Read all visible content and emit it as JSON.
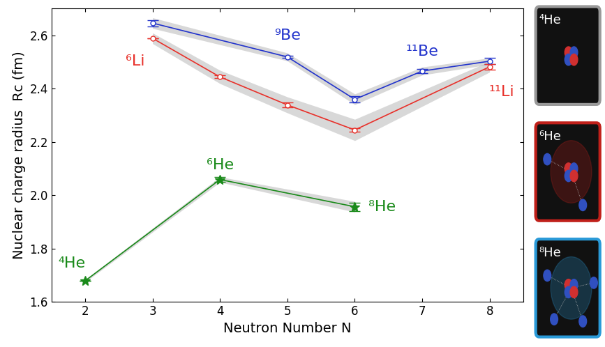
{
  "chart_data": {
    "type": "line",
    "xlabel": "Neutron Number N",
    "ylabel": "Nuclear charge radius  Rc (fm)",
    "xlim": [
      1.5,
      8.5
    ],
    "xticks": [
      2,
      3,
      4,
      5,
      6,
      7,
      8
    ],
    "ylim": [
      1.6,
      2.7
    ],
    "yticks": [
      1.6,
      1.8,
      2.0,
      2.2,
      2.4,
      2.6
    ],
    "grid": false,
    "series": [
      {
        "color": "#2233cc",
        "marker": "circle",
        "line_style": "solid",
        "x": [
          3,
          5,
          6,
          7,
          8
        ],
        "values": [
          2.646,
          2.519,
          2.36,
          2.466,
          2.503
        ],
        "errors": [
          0.012,
          0.004,
          0.012,
          0.008,
          0.012
        ],
        "band": [
          0.02,
          0.015,
          0.02,
          0.015,
          0.012
        ],
        "point_labels": [
          {
            "x": 5,
            "text": "⁹Be"
          },
          {
            "x": 7,
            "text": "¹¹Be"
          }
        ]
      },
      {
        "color": "#e8302a",
        "marker": "circle",
        "line_style": "solid",
        "x": [
          3,
          4,
          5,
          6,
          8
        ],
        "values": [
          2.589,
          2.444,
          2.339,
          2.245,
          2.482
        ],
        "errors": [
          0.0,
          0.005,
          0.008,
          0.006,
          0.01
        ],
        "band": [
          0.02,
          0.025,
          0.03,
          0.04,
          0.02
        ],
        "point_labels": [
          {
            "x": 3,
            "text": "⁶Li"
          },
          {
            "x": 8,
            "text": "¹¹Li"
          }
        ]
      },
      {
        "color": "#1a8a1a",
        "marker": "star",
        "line_style": "solid",
        "x": [
          2,
          4,
          6
        ],
        "values": [
          1.679,
          2.059,
          1.957
        ],
        "errors": [
          0.0,
          0.01,
          0.016
        ],
        "band": [
          0.005,
          0.01,
          0.02
        ],
        "point_labels": [
          {
            "x": 2,
            "text": "⁴He"
          },
          {
            "x": 4,
            "text": "⁶He"
          },
          {
            "x": 6,
            "text": "⁸He"
          }
        ]
      }
    ]
  },
  "panels": [
    {
      "label": "⁴He",
      "color": "#999999"
    },
    {
      "label": "⁶He",
      "color": "#c0201a"
    },
    {
      "label": "⁸He",
      "color": "#2a9ad8"
    }
  ]
}
